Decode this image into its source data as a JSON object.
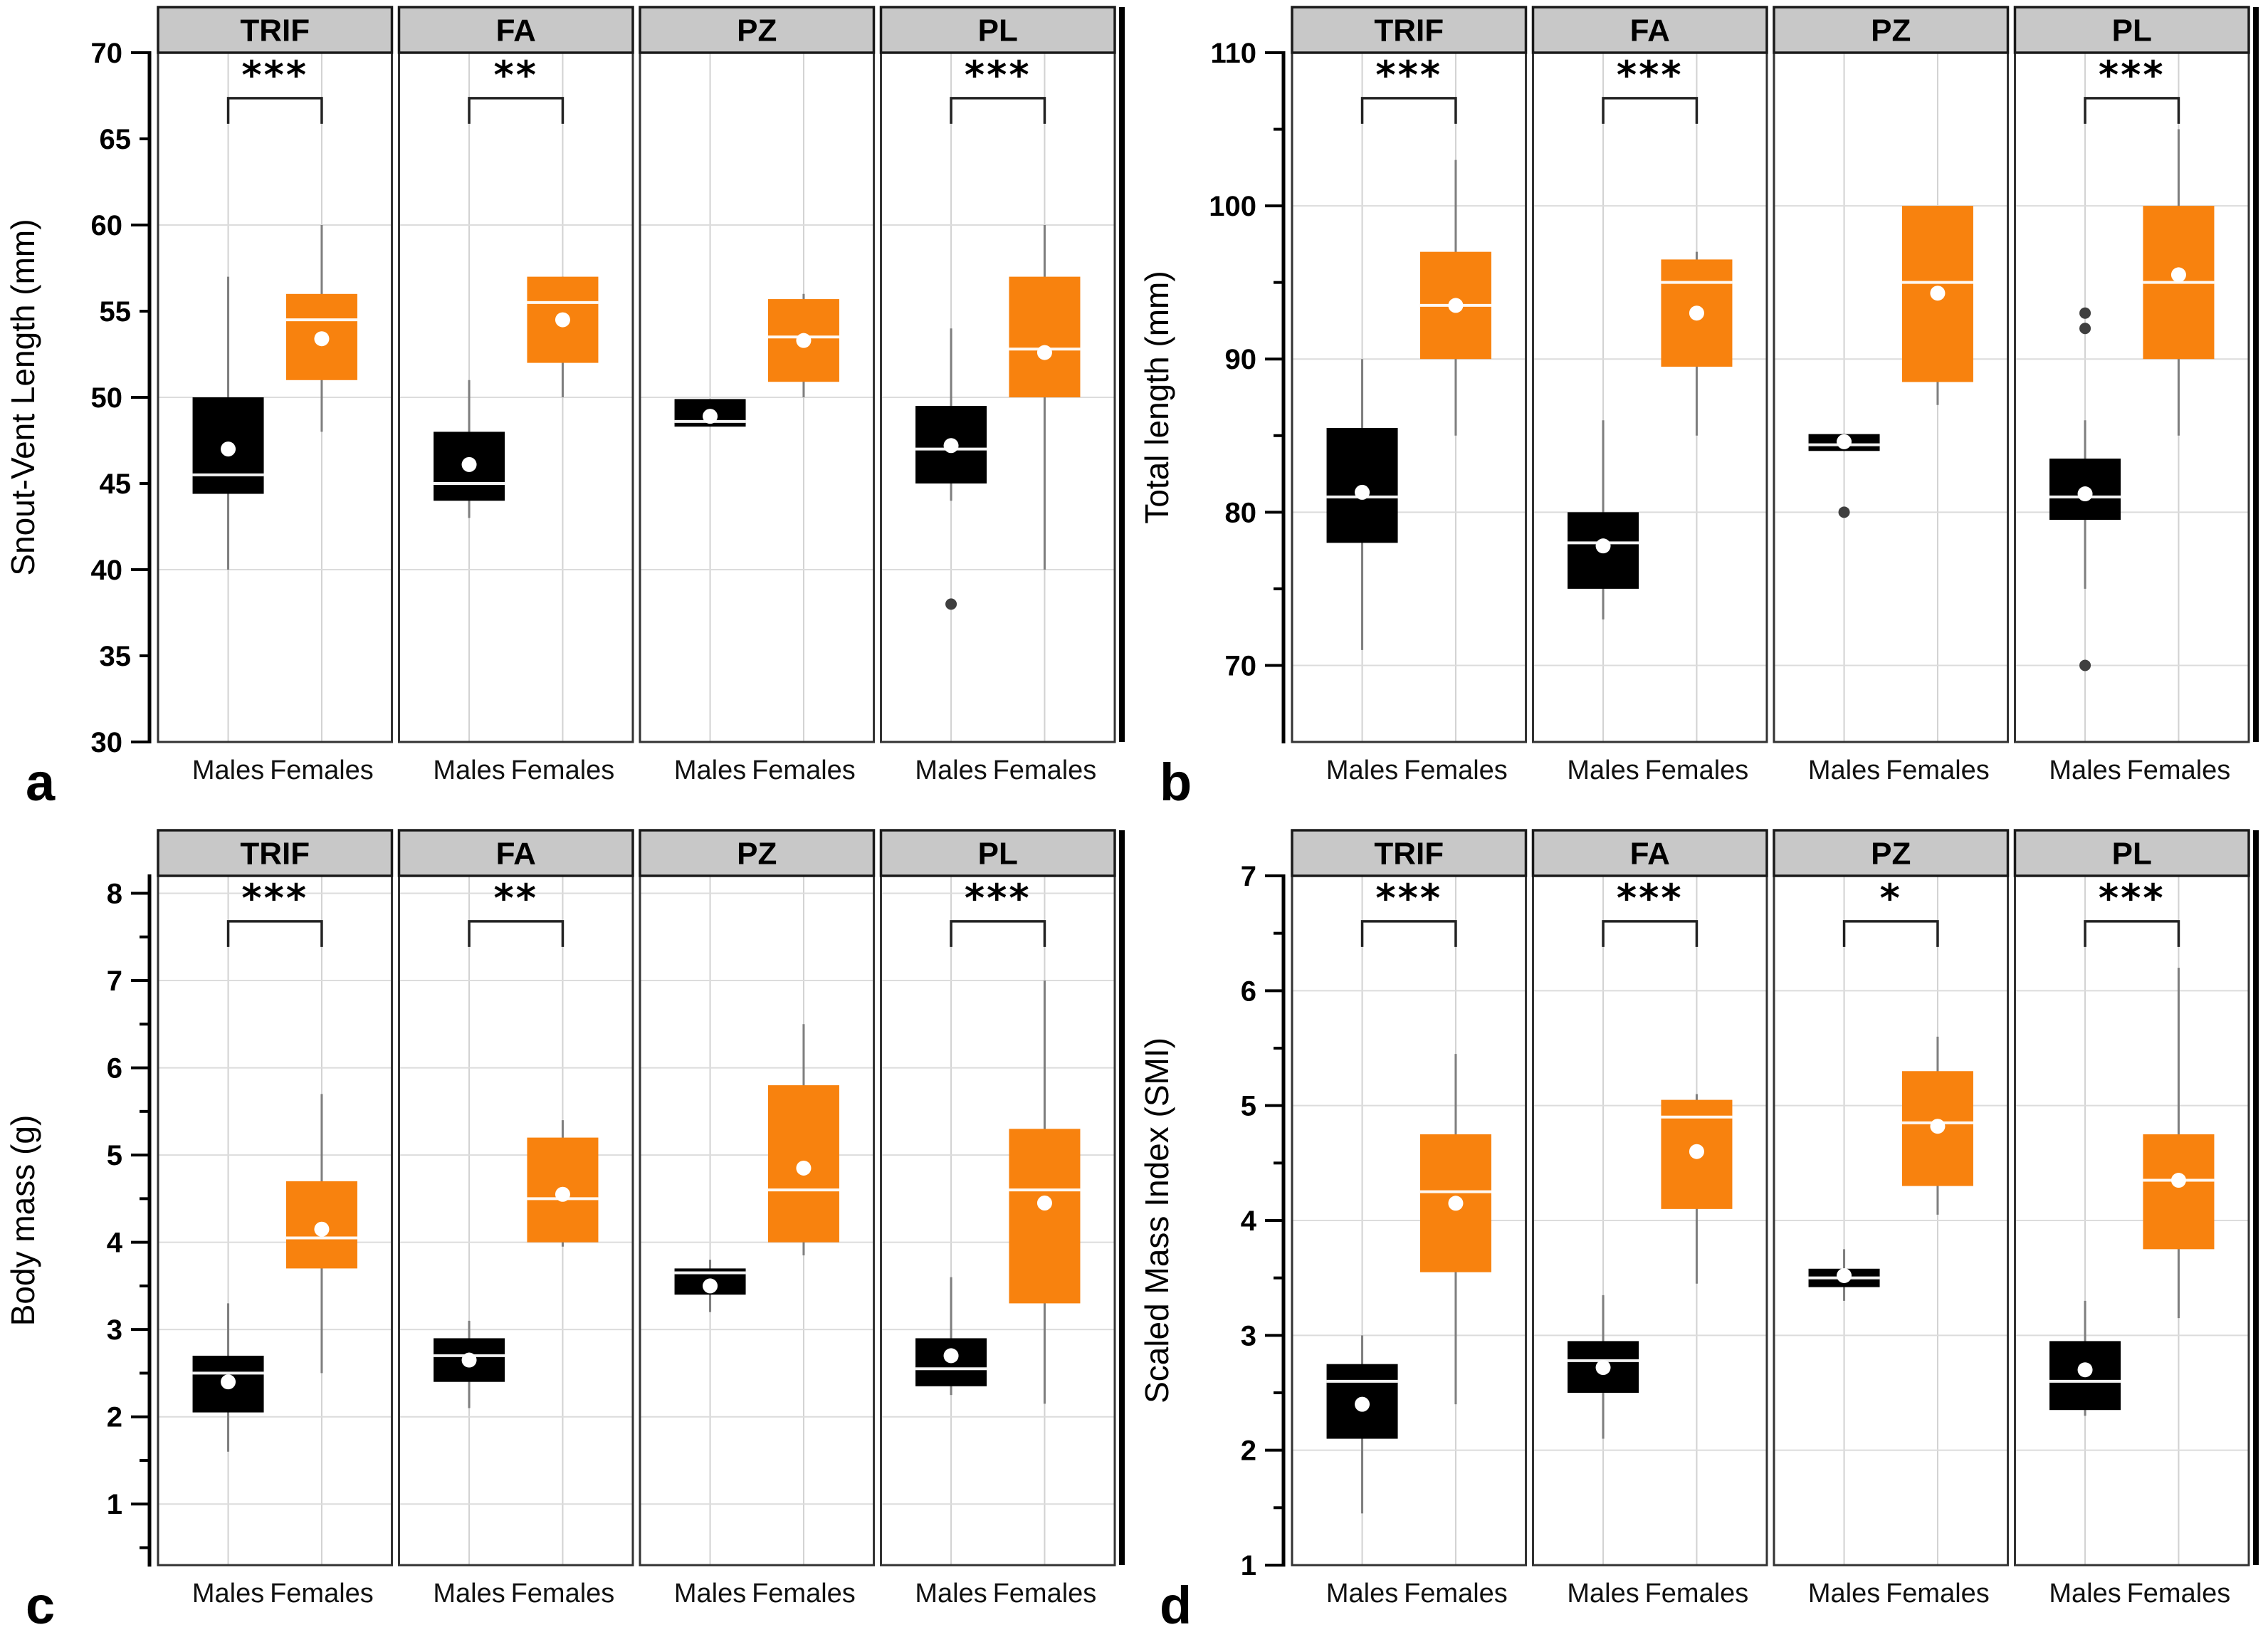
{
  "figure": {
    "x_groups": [
      "Males",
      "Females"
    ],
    "colors": {
      "background": "#FFFFFF",
      "male_box": "#000000",
      "female_box": "#F8820E",
      "strip_bg": "#C8C8C8",
      "strip_border": "#1A1A1A",
      "facet_border": "#333333",
      "grid": "#DCDCDC",
      "vgrid": "#D2D2D2",
      "axis": "#000000",
      "whisker": "#7E7E7E",
      "median": "#FFFFFF",
      "mean_dot": "#FFFFFF",
      "outlier": "#3F3F3F",
      "bracket": "#222222"
    }
  },
  "chart_data": [
    {
      "type": "box",
      "panel_letter": "a",
      "ylabel": "Snout-Vent Length (mm)",
      "ylim": [
        30,
        70
      ],
      "gridlines": [
        40,
        50,
        60
      ],
      "yticks": [
        {
          "v": 70,
          "label": "70",
          "major": true
        },
        {
          "v": 65,
          "label": "65",
          "major": false
        },
        {
          "v": 60,
          "label": "60",
          "major": true
        },
        {
          "v": 55,
          "label": "55",
          "major": false
        },
        {
          "v": 50,
          "label": "50",
          "major": true
        },
        {
          "v": 45,
          "label": "45",
          "major": false
        },
        {
          "v": 40,
          "label": "40",
          "major": true
        },
        {
          "v": 35,
          "label": "35",
          "major": false
        },
        {
          "v": 30,
          "label": "30",
          "major": true
        }
      ],
      "facets": [
        {
          "label": "TRIF",
          "significance": "***",
          "boxes": [
            {
              "group": "Males",
              "sex": "male",
              "whisker_low": 40,
              "q1": 44.4,
              "median": 45.5,
              "q3": 50,
              "whisker_high": 57,
              "mean": 47,
              "outliers": []
            },
            {
              "group": "Females",
              "sex": "female",
              "whisker_low": 48,
              "q1": 51,
              "median": 54.5,
              "q3": 56,
              "whisker_high": 60,
              "mean": 53.4,
              "outliers": []
            }
          ]
        },
        {
          "label": "FA",
          "significance": "**",
          "boxes": [
            {
              "group": "Males",
              "sex": "male",
              "whisker_low": 43,
              "q1": 44,
              "median": 45,
              "q3": 48,
              "whisker_high": 51,
              "mean": 46.1,
              "outliers": []
            },
            {
              "group": "Females",
              "sex": "female",
              "whisker_low": 50,
              "q1": 52,
              "median": 55.5,
              "q3": 57,
              "whisker_high": 57,
              "mean": 54.5,
              "outliers": []
            }
          ]
        },
        {
          "label": "PZ",
          "significance": null,
          "boxes": [
            {
              "group": "Males",
              "sex": "male",
              "whisker_low": 48.3,
              "q1": 48.3,
              "median": 48.6,
              "q3": 49.9,
              "whisker_high": 49.9,
              "mean": 48.9,
              "outliers": []
            },
            {
              "group": "Females",
              "sex": "female",
              "whisker_low": 50,
              "q1": 50.9,
              "median": 53.5,
              "q3": 55.7,
              "whisker_high": 56,
              "mean": 53.3,
              "outliers": []
            }
          ]
        },
        {
          "label": "PL",
          "significance": "***",
          "boxes": [
            {
              "group": "Males",
              "sex": "male",
              "whisker_low": 44,
              "q1": 45,
              "median": 47,
              "q3": 49.5,
              "whisker_high": 54,
              "mean": 47.2,
              "outliers": [
                38
              ]
            },
            {
              "group": "Females",
              "sex": "female",
              "whisker_low": 40,
              "q1": 50,
              "median": 52.8,
              "q3": 57,
              "whisker_high": 60,
              "mean": 52.6,
              "outliers": []
            }
          ]
        }
      ]
    },
    {
      "type": "box",
      "panel_letter": "b",
      "ylabel": "Total length (mm)",
      "ylim": [
        65,
        110
      ],
      "gridlines": [
        70,
        80,
        90,
        100
      ],
      "yticks": [
        {
          "v": 110,
          "label": "110",
          "major": true
        },
        {
          "v": 105,
          "label": "",
          "major": false
        },
        {
          "v": 100,
          "label": "100",
          "major": true
        },
        {
          "v": 95,
          "label": "",
          "major": false
        },
        {
          "v": 90,
          "label": "90",
          "major": true
        },
        {
          "v": 85,
          "label": "",
          "major": false
        },
        {
          "v": 80,
          "label": "80",
          "major": true
        },
        {
          "v": 75,
          "label": "",
          "major": false
        },
        {
          "v": 70,
          "label": "70",
          "major": true
        }
      ],
      "facets": [
        {
          "label": "TRIF",
          "significance": "***",
          "boxes": [
            {
              "group": "Males",
              "sex": "male",
              "whisker_low": 71,
              "q1": 78,
              "median": 81,
              "q3": 85.5,
              "whisker_high": 90,
              "mean": 81.3,
              "outliers": []
            },
            {
              "group": "Females",
              "sex": "female",
              "whisker_low": 85,
              "q1": 90,
              "median": 93.5,
              "q3": 97,
              "whisker_high": 103,
              "mean": 93.5,
              "outliers": []
            }
          ]
        },
        {
          "label": "FA",
          "significance": "***",
          "boxes": [
            {
              "group": "Males",
              "sex": "male",
              "whisker_low": 73,
              "q1": 75,
              "median": 78,
              "q3": 80,
              "whisker_high": 86,
              "mean": 77.8,
              "outliers": []
            },
            {
              "group": "Females",
              "sex": "female",
              "whisker_low": 85,
              "q1": 89.5,
              "median": 95,
              "q3": 96.5,
              "whisker_high": 97,
              "mean": 93,
              "outliers": []
            }
          ]
        },
        {
          "label": "PZ",
          "significance": null,
          "boxes": [
            {
              "group": "Males",
              "sex": "male",
              "whisker_low": 84,
              "q1": 84,
              "median": 84.4,
              "q3": 85.1,
              "whisker_high": 85.1,
              "mean": 84.6,
              "outliers": [
                80
              ]
            },
            {
              "group": "Females",
              "sex": "female",
              "whisker_low": 87,
              "q1": 88.5,
              "median": 95,
              "q3": 100,
              "whisker_high": 100,
              "mean": 94.3,
              "outliers": []
            }
          ]
        },
        {
          "label": "PL",
          "significance": "***",
          "boxes": [
            {
              "group": "Males",
              "sex": "male",
              "whisker_low": 75,
              "q1": 79.5,
              "median": 81,
              "q3": 83.5,
              "whisker_high": 86,
              "mean": 81.2,
              "outliers": [
                93,
                92,
                70
              ]
            },
            {
              "group": "Females",
              "sex": "female",
              "whisker_low": 85,
              "q1": 90,
              "median": 95,
              "q3": 100,
              "whisker_high": 105,
              "mean": 95.5,
              "outliers": []
            }
          ]
        }
      ]
    },
    {
      "type": "box",
      "panel_letter": "c",
      "ylabel": "Body mass (g)",
      "ylim": [
        0.3,
        8.2
      ],
      "gridlines": [
        1,
        2,
        3,
        4,
        5,
        6,
        7,
        8
      ],
      "yticks": [
        {
          "v": 8,
          "label": "8",
          "major": true
        },
        {
          "v": 7.5,
          "label": "",
          "major": false
        },
        {
          "v": 7,
          "label": "7",
          "major": true
        },
        {
          "v": 6.5,
          "label": "",
          "major": false
        },
        {
          "v": 6,
          "label": "6",
          "major": true
        },
        {
          "v": 5.5,
          "label": "",
          "major": false
        },
        {
          "v": 5,
          "label": "5",
          "major": true
        },
        {
          "v": 4.5,
          "label": "",
          "major": false
        },
        {
          "v": 4,
          "label": "4",
          "major": true
        },
        {
          "v": 3.5,
          "label": "",
          "major": false
        },
        {
          "v": 3,
          "label": "3",
          "major": true
        },
        {
          "v": 2.5,
          "label": "",
          "major": false
        },
        {
          "v": 2,
          "label": "2",
          "major": true
        },
        {
          "v": 1.5,
          "label": "",
          "major": false
        },
        {
          "v": 1,
          "label": "1",
          "major": true
        },
        {
          "v": 0.5,
          "label": "",
          "major": false
        }
      ],
      "facets": [
        {
          "label": "TRIF",
          "significance": "***",
          "boxes": [
            {
              "group": "Males",
              "sex": "male",
              "whisker_low": 1.6,
              "q1": 2.05,
              "median": 2.5,
              "q3": 2.7,
              "whisker_high": 3.3,
              "mean": 2.4,
              "outliers": []
            },
            {
              "group": "Females",
              "sex": "female",
              "whisker_low": 2.5,
              "q1": 3.7,
              "median": 4.05,
              "q3": 4.7,
              "whisker_high": 5.7,
              "mean": 4.15,
              "outliers": []
            }
          ]
        },
        {
          "label": "FA",
          "significance": "**",
          "boxes": [
            {
              "group": "Males",
              "sex": "male",
              "whisker_low": 2.1,
              "q1": 2.4,
              "median": 2.7,
              "q3": 2.9,
              "whisker_high": 3.1,
              "mean": 2.65,
              "outliers": []
            },
            {
              "group": "Females",
              "sex": "female",
              "whisker_low": 3.95,
              "q1": 4,
              "median": 4.5,
              "q3": 5.2,
              "whisker_high": 5.4,
              "mean": 4.55,
              "outliers": []
            }
          ]
        },
        {
          "label": "PZ",
          "significance": null,
          "boxes": [
            {
              "group": "Males",
              "sex": "male",
              "whisker_low": 3.2,
              "q1": 3.4,
              "median": 3.65,
              "q3": 3.7,
              "whisker_high": 3.8,
              "mean": 3.5,
              "outliers": []
            },
            {
              "group": "Females",
              "sex": "female",
              "whisker_low": 3.85,
              "q1": 4,
              "median": 4.6,
              "q3": 5.8,
              "whisker_high": 6.5,
              "mean": 4.85,
              "outliers": []
            }
          ]
        },
        {
          "label": "PL",
          "significance": "***",
          "boxes": [
            {
              "group": "Males",
              "sex": "male",
              "whisker_low": 2.25,
              "q1": 2.35,
              "median": 2.55,
              "q3": 2.9,
              "whisker_high": 3.6,
              "mean": 2.7,
              "outliers": []
            },
            {
              "group": "Females",
              "sex": "female",
              "whisker_low": 2.15,
              "q1": 3.3,
              "median": 4.6,
              "q3": 5.3,
              "whisker_high": 7,
              "mean": 4.45,
              "outliers": []
            }
          ]
        }
      ]
    },
    {
      "type": "box",
      "panel_letter": "d",
      "ylabel": "Scaled Mass Index (SMI)",
      "ylim": [
        1,
        7
      ],
      "gridlines": [
        2,
        3,
        4,
        5,
        6
      ],
      "yticks": [
        {
          "v": 7,
          "label": "7",
          "major": true
        },
        {
          "v": 6.5,
          "label": "",
          "major": false
        },
        {
          "v": 6,
          "label": "6",
          "major": true
        },
        {
          "v": 5.5,
          "label": "",
          "major": false
        },
        {
          "v": 5,
          "label": "5",
          "major": true
        },
        {
          "v": 4.5,
          "label": "",
          "major": false
        },
        {
          "v": 4,
          "label": "4",
          "major": true
        },
        {
          "v": 3.5,
          "label": "",
          "major": false
        },
        {
          "v": 3,
          "label": "3",
          "major": true
        },
        {
          "v": 2.5,
          "label": "",
          "major": false
        },
        {
          "v": 2,
          "label": "2",
          "major": true
        },
        {
          "v": 1.5,
          "label": "",
          "major": false
        },
        {
          "v": 1,
          "label": "1",
          "major": true
        }
      ],
      "facets": [
        {
          "label": "TRIF",
          "significance": "***",
          "boxes": [
            {
              "group": "Males",
              "sex": "male",
              "whisker_low": 1.45,
              "q1": 2.1,
              "median": 2.6,
              "q3": 2.75,
              "whisker_high": 3,
              "mean": 2.4,
              "outliers": []
            },
            {
              "group": "Females",
              "sex": "female",
              "whisker_low": 2.4,
              "q1": 3.55,
              "median": 4.25,
              "q3": 4.75,
              "whisker_high": 5.45,
              "mean": 4.15,
              "outliers": []
            }
          ]
        },
        {
          "label": "FA",
          "significance": "***",
          "boxes": [
            {
              "group": "Males",
              "sex": "male",
              "whisker_low": 2.1,
              "q1": 2.5,
              "median": 2.78,
              "q3": 2.95,
              "whisker_high": 3.35,
              "mean": 2.72,
              "outliers": []
            },
            {
              "group": "Females",
              "sex": "female",
              "whisker_low": 3.45,
              "q1": 4.1,
              "median": 4.9,
              "q3": 5.05,
              "whisker_high": 5.1,
              "mean": 4.6,
              "outliers": []
            }
          ]
        },
        {
          "label": "PZ",
          "significance": "*",
          "boxes": [
            {
              "group": "Males",
              "sex": "male",
              "whisker_low": 3.3,
              "q1": 3.42,
              "median": 3.5,
              "q3": 3.58,
              "whisker_high": 3.75,
              "mean": 3.52,
              "outliers": []
            },
            {
              "group": "Females",
              "sex": "female",
              "whisker_low": 4.05,
              "q1": 4.3,
              "median": 4.85,
              "q3": 5.3,
              "whisker_high": 5.6,
              "mean": 4.82,
              "outliers": []
            }
          ]
        },
        {
          "label": "PL",
          "significance": "***",
          "boxes": [
            {
              "group": "Males",
              "sex": "male",
              "whisker_low": 2.3,
              "q1": 2.35,
              "median": 2.6,
              "q3": 2.95,
              "whisker_high": 3.3,
              "mean": 2.7,
              "outliers": []
            },
            {
              "group": "Females",
              "sex": "female",
              "whisker_low": 3.15,
              "q1": 3.75,
              "median": 4.35,
              "q3": 4.75,
              "whisker_high": 6.2,
              "mean": 4.35,
              "outliers": []
            }
          ]
        }
      ]
    }
  ]
}
